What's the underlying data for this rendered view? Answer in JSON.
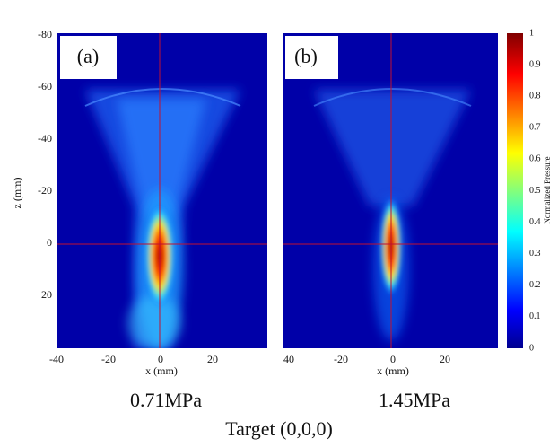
{
  "panels": [
    {
      "label": "(a)",
      "x_label": "x (mm)",
      "z_label": "z (mm)",
      "x_ticks": [
        "-40",
        "-20",
        "0",
        "20"
      ],
      "z_ticks": [
        "-80",
        "-60",
        "-40",
        "-20",
        "0",
        "20"
      ],
      "caption": "0.71MPa"
    },
    {
      "label": "(b)",
      "x_label": "x (mm)",
      "x_ticks": [
        "40",
        "-20",
        "0",
        "20"
      ],
      "caption": "1.45MPa"
    }
  ],
  "colorbar": {
    "title": "Normalized Pressure",
    "ticks": [
      "0",
      "0.1",
      "0.2",
      "0.3",
      "0.4",
      "0.5",
      "0.6",
      "0.7",
      "0.8",
      "0.9",
      "1"
    ]
  },
  "caption": "Target (0,0,0)"
}
